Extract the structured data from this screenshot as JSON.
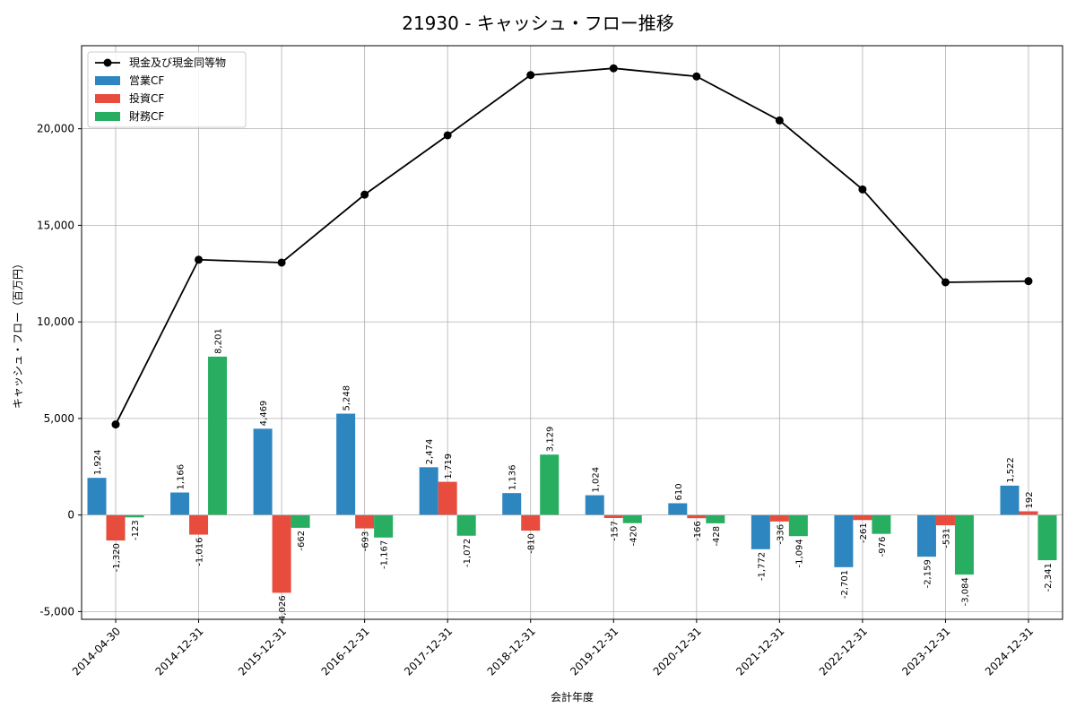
{
  "chart_data": {
    "type": "bar",
    "title": "21930 - キャッシュ・フロー推移",
    "xlabel": "会計年度",
    "ylabel": "キャッシュ・フロー（百万円）",
    "ylim": [
      -5400,
      24300
    ],
    "yticks": [
      -5000,
      0,
      5000,
      10000,
      15000,
      20000
    ],
    "ytick_labels": [
      "-5,000",
      "0",
      "5,000",
      "10,000",
      "15,000",
      "20,000"
    ],
    "grid": true,
    "legend_position": "top-left",
    "categories": [
      "2014-04-30",
      "2014-12-31",
      "2015-12-31",
      "2016-12-31",
      "2017-12-31",
      "2018-12-31",
      "2019-12-31",
      "2020-12-31",
      "2021-12-31",
      "2022-12-31",
      "2023-12-31",
      "2024-12-31"
    ],
    "series": [
      {
        "name": "営業CF",
        "kind": "bar",
        "color": "#2e86c1",
        "values": [
          1924,
          1166,
          4469,
          5248,
          2474,
          1136,
          1024,
          610,
          -1772,
          -2701,
          -2159,
          1522
        ],
        "labels": [
          "1,924",
          "1,166",
          "4,469",
          "5,248",
          "2,474",
          "1,136",
          "1,024",
          "610",
          "-1,772",
          "-2,701",
          "-2,159",
          "1,522"
        ]
      },
      {
        "name": "投資CF",
        "kind": "bar",
        "color": "#e74c3c",
        "values": [
          -1320,
          -1016,
          -4026,
          -693,
          1719,
          -810,
          -157,
          -166,
          -336,
          -261,
          -531,
          192
        ],
        "labels": [
          "-1,320",
          "-1,016",
          "-4,026",
          "-693",
          "1,719",
          "-810",
          "-157",
          "-166",
          "-336",
          "-261",
          "-531",
          "192"
        ]
      },
      {
        "name": "財務CF",
        "kind": "bar",
        "color": "#27ae60",
        "values": [
          -123,
          8201,
          -662,
          -1167,
          -1072,
          3129,
          -420,
          -428,
          -1094,
          -976,
          -3084,
          -2341
        ],
        "labels": [
          "-123",
          "8,201",
          "-662",
          "-1,167",
          "-1,072",
          "3,129",
          "-420",
          "-428",
          "-1,094",
          "-976",
          "-3,084",
          "-2,341"
        ]
      },
      {
        "name": "現金及び現金同等物",
        "kind": "line",
        "color": "#000000",
        "values": [
          4690,
          13220,
          13070,
          16590,
          19660,
          22780,
          23130,
          22710,
          20430,
          16860,
          12050,
          12110
        ]
      }
    ]
  }
}
